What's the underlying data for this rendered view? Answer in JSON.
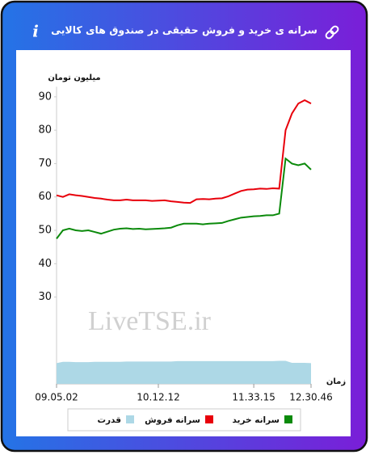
{
  "header": {
    "info_icon": "i"
  },
  "chart_data": {
    "type": "line",
    "title": "سرانه ی خرید و فروش حقیقی در صندوق های کالایی",
    "y_label": "میلیون تومان",
    "x_label": "زمان",
    "watermark": "LiveTSE.ir",
    "categories": [
      "09.05.02",
      null,
      null,
      null,
      null,
      null,
      null,
      null,
      null,
      null,
      null,
      null,
      null,
      null,
      null,
      null,
      "10.12.12",
      null,
      null,
      null,
      null,
      null,
      null,
      null,
      null,
      null,
      null,
      null,
      null,
      null,
      null,
      "11.33.15",
      null,
      null,
      null,
      null,
      null,
      null,
      null,
      null,
      "12.30.46"
    ],
    "ylim": [
      4,
      93
    ],
    "yticks": [
      30,
      40,
      50,
      60,
      70,
      80,
      90
    ],
    "grid": false,
    "legend": "bottom",
    "series": [
      {
        "name": "سرانه خرید",
        "color": "#0b8a0b",
        "kind": "line",
        "values": [
          47.5,
          50,
          50.5,
          50,
          49.8,
          50,
          49.5,
          49,
          49.6,
          50.2,
          50.5,
          50.6,
          50.4,
          50.5,
          50.3,
          50.4,
          50.5,
          50.6,
          50.8,
          51.5,
          52,
          52,
          52,
          51.8,
          52,
          52.1,
          52.2,
          52.8,
          53.3,
          53.8,
          54,
          54.2,
          54.3,
          54.5,
          54.5,
          55,
          71.5,
          70,
          69.5,
          70,
          68.2
        ]
      },
      {
        "name": "سرانه فروش",
        "color": "#e8000b",
        "kind": "line",
        "values": [
          60.5,
          60,
          60.8,
          60.5,
          60.3,
          60,
          59.7,
          59.5,
          59.2,
          59,
          59,
          59.2,
          59,
          59,
          59,
          58.8,
          58.9,
          59,
          58.7,
          58.5,
          58.3,
          58.2,
          59.3,
          59.4,
          59.3,
          59.5,
          59.6,
          60.2,
          61,
          61.8,
          62.2,
          62.3,
          62.5,
          62.4,
          62.6,
          62.5,
          80,
          85,
          88,
          89,
          88
        ]
      },
      {
        "name": "قدرت",
        "color": "#add8e6",
        "kind": "area",
        "values": [
          10.2,
          10.6,
          10.6,
          10.5,
          10.5,
          10.5,
          10.6,
          10.6,
          10.6,
          10.6,
          10.6,
          10.7,
          10.7,
          10.7,
          10.7,
          10.7,
          10.7,
          10.7,
          10.7,
          10.8,
          10.8,
          10.8,
          10.8,
          10.8,
          10.8,
          10.8,
          10.8,
          10.8,
          10.8,
          10.8,
          10.8,
          10.8,
          10.8,
          10.8,
          10.8,
          10.9,
          10.9,
          10.3,
          10.3,
          10.3,
          10.2
        ]
      }
    ]
  }
}
